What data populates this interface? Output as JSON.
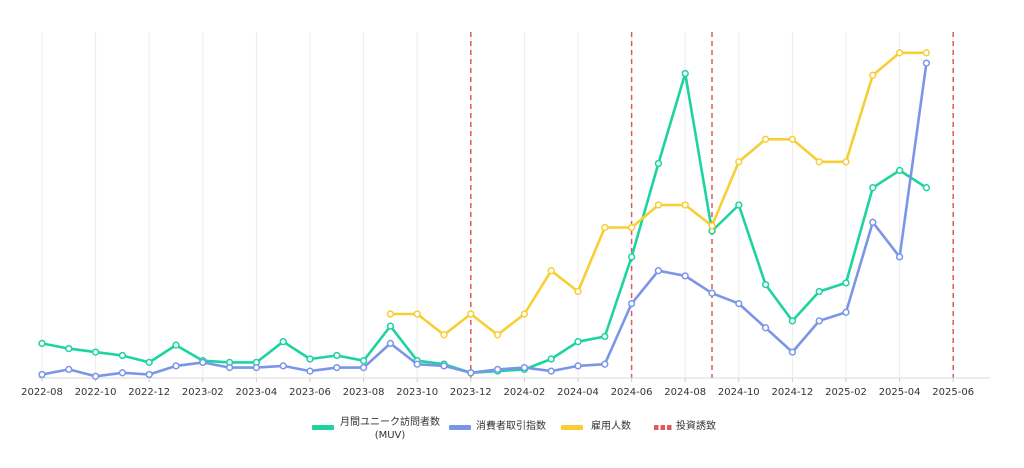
{
  "chart_data": {
    "type": "line",
    "title": "",
    "xlabel": "",
    "ylabel": "",
    "x_start": "2022-08",
    "x_end": "2025-06",
    "tick_labels": [
      "2022-08",
      "2022-10",
      "2022-12",
      "2023-02",
      "2023-04",
      "2023-06",
      "2023-08",
      "2023-10",
      "2023-12",
      "2024-02",
      "2024-04",
      "2024-06",
      "2024-08",
      "2024-10",
      "2024-12",
      "2025-02",
      "2025-04",
      "2025-06"
    ],
    "ylim": [
      0,
      100
    ],
    "grid": "vertical",
    "legend_position": "bottom",
    "series": [
      {
        "name": "月間ユニーク訪問者数(MUV)",
        "legend_lines": [
          "月間ユニーク訪問者数",
          "(MUV)"
        ],
        "color": "#1dd3a0",
        "points": [
          [
            "2022-08",
            10
          ],
          [
            "2022-09",
            8.5
          ],
          [
            "2022-10",
            7.5
          ],
          [
            "2022-11",
            6.5
          ],
          [
            "2022-12",
            4.5
          ],
          [
            "2023-01",
            9.5
          ],
          [
            "2023-02",
            5
          ],
          [
            "2023-03",
            4.5
          ],
          [
            "2023-04",
            4.5
          ],
          [
            "2023-05",
            10.5
          ],
          [
            "2023-06",
            5.5
          ],
          [
            "2023-07",
            6.5
          ],
          [
            "2023-08",
            5
          ],
          [
            "2023-09",
            15
          ],
          [
            "2023-10",
            5
          ],
          [
            "2023-11",
            4
          ],
          [
            "2023-12",
            1.5
          ],
          [
            "2024-01",
            2
          ],
          [
            "2024-02",
            2.5
          ],
          [
            "2024-03",
            5.5
          ],
          [
            "2024-04",
            10.5
          ],
          [
            "2024-05",
            12
          ],
          [
            "2024-06",
            35
          ],
          [
            "2024-07",
            62
          ],
          [
            "2024-08",
            88
          ],
          [
            "2024-09",
            42.5
          ],
          [
            "2024-10",
            50
          ],
          [
            "2024-11",
            27
          ],
          [
            "2024-12",
            16.5
          ],
          [
            "2025-01",
            25
          ],
          [
            "2025-02",
            27.5
          ],
          [
            "2025-03",
            55
          ],
          [
            "2025-04",
            60
          ],
          [
            "2025-05",
            55
          ]
        ]
      },
      {
        "name": "消費者取引指数",
        "color": "#7b96e8",
        "points": [
          [
            "2022-08",
            1
          ],
          [
            "2022-09",
            2.5
          ],
          [
            "2022-10",
            0.5
          ],
          [
            "2022-11",
            1.5
          ],
          [
            "2022-12",
            1
          ],
          [
            "2023-01",
            3.5
          ],
          [
            "2023-02",
            4.5
          ],
          [
            "2023-03",
            3
          ],
          [
            "2023-04",
            3
          ],
          [
            "2023-05",
            3.5
          ],
          [
            "2023-06",
            2
          ],
          [
            "2023-07",
            3
          ],
          [
            "2023-08",
            3
          ],
          [
            "2023-09",
            10
          ],
          [
            "2023-10",
            4
          ],
          [
            "2023-11",
            3.5
          ],
          [
            "2023-12",
            1.5
          ],
          [
            "2024-01",
            2.5
          ],
          [
            "2024-02",
            3
          ],
          [
            "2024-03",
            2
          ],
          [
            "2024-04",
            3.5
          ],
          [
            "2024-05",
            4
          ],
          [
            "2024-06",
            21.5
          ],
          [
            "2024-07",
            31
          ],
          [
            "2024-08",
            29.5
          ],
          [
            "2024-09",
            24.5
          ],
          [
            "2024-10",
            21.5
          ],
          [
            "2024-11",
            14.5
          ],
          [
            "2024-12",
            7.5
          ],
          [
            "2025-01",
            16.5
          ],
          [
            "2025-02",
            19
          ],
          [
            "2025-03",
            45
          ],
          [
            "2025-04",
            35
          ],
          [
            "2025-05",
            91
          ]
        ]
      },
      {
        "name": "雇用人数",
        "color": "#f7cf35",
        "points": [
          [
            "2023-09",
            18.5
          ],
          [
            "2023-10",
            18.5
          ],
          [
            "2023-11",
            12.5
          ],
          [
            "2023-12",
            18.5
          ],
          [
            "2024-01",
            12.5
          ],
          [
            "2024-02",
            18.5
          ],
          [
            "2024-03",
            31
          ],
          [
            "2024-04",
            25
          ],
          [
            "2024-05",
            43.5
          ],
          [
            "2024-06",
            43.5
          ],
          [
            "2024-07",
            50
          ],
          [
            "2024-08",
            50
          ],
          [
            "2024-09",
            44
          ],
          [
            "2024-10",
            62.5
          ],
          [
            "2024-11",
            69
          ],
          [
            "2024-12",
            69
          ],
          [
            "2025-01",
            62.5
          ],
          [
            "2025-02",
            62.5
          ],
          [
            "2025-03",
            87.5
          ],
          [
            "2025-04",
            94
          ],
          [
            "2025-05",
            94
          ]
        ]
      }
    ],
    "investment_events": {
      "name": "投資誘致",
      "color": "#e05a5a",
      "dates": [
        "2023-12",
        "2024-06",
        "2024-09",
        "2025-06"
      ]
    }
  }
}
